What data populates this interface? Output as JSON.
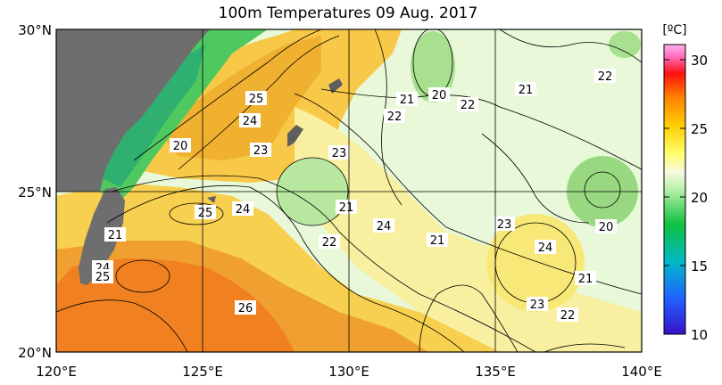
{
  "title": "100m Temperatures  09 Aug. 2017",
  "colorbar": {
    "unit": "[ºC]",
    "ticks": [
      "30",
      "25",
      "20",
      "15",
      "10"
    ]
  },
  "axes": {
    "y_ticks": [
      "30°N",
      "25°N",
      "20°N"
    ],
    "x_ticks": [
      "120°E",
      "125°E",
      "130°E",
      "135°E",
      "140°E"
    ]
  },
  "contour_labels": [
    "25",
    "24",
    "23",
    "20",
    "25",
    "24",
    "21",
    "22",
    "23",
    "21",
    "20",
    "22",
    "22",
    "21",
    "22",
    "24",
    "21",
    "23",
    "21",
    "24",
    "20",
    "21",
    "23",
    "22",
    "26",
    "24",
    "25"
  ]
}
